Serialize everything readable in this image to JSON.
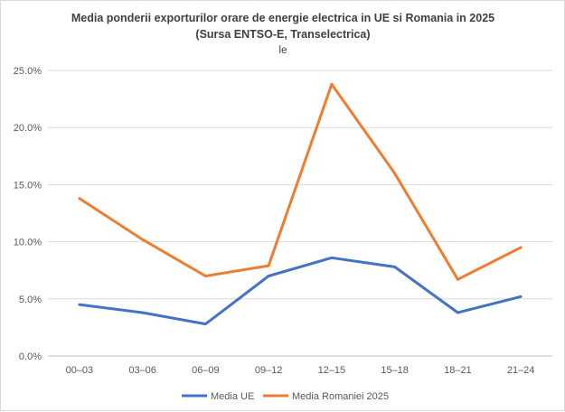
{
  "chart_data": {
    "type": "line",
    "title": "Media ponderii exporturilor orare de energie electrica in UE si Romania in 2025",
    "subtitle": "(Sursa ENTSO-E, Transelectrica)",
    "note": "le",
    "xlabel": "",
    "ylabel": "",
    "categories": [
      "00–03",
      "03–06",
      "06–09",
      "09–12",
      "12–15",
      "15–18",
      "18–21",
      "21–24"
    ],
    "ylim": [
      0,
      25
    ],
    "yticks": [
      0,
      5,
      10,
      15,
      20,
      25
    ],
    "ytick_labels": [
      "0.0%",
      "5.0%",
      "10.0%",
      "15.0%",
      "20.0%",
      "25.0%"
    ],
    "grid": true,
    "legend_position": "bottom",
    "series": [
      {
        "name": "Media UE",
        "color": "#4472c4",
        "values": [
          4.5,
          3.8,
          2.8,
          7.0,
          8.6,
          7.8,
          3.8,
          5.2
        ]
      },
      {
        "name": "Media Romaniei 2025",
        "color": "#ed7d31",
        "values": [
          13.8,
          10.2,
          7.0,
          7.9,
          23.8,
          16.0,
          6.7,
          9.5
        ]
      }
    ]
  }
}
